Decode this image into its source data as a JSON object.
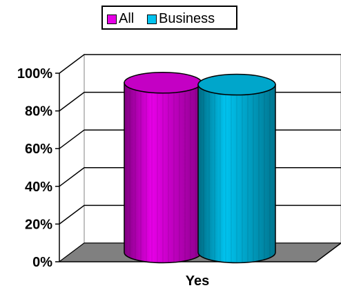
{
  "chart_data": {
    "type": "bar",
    "style": "3d-cylinder",
    "categories": [
      "Yes"
    ],
    "series": [
      {
        "name": "All",
        "values": [
          0.9
        ],
        "color": "#e700e7"
      },
      {
        "name": "Business",
        "values": [
          0.89
        ],
        "color": "#00c3ef"
      }
    ],
    "ylim": [
      0,
      1
    ],
    "yticks": [
      {
        "value": 0,
        "label": "0%"
      },
      {
        "value": 0.2,
        "label": "20%"
      },
      {
        "value": 0.4,
        "label": "40%"
      },
      {
        "value": 0.6,
        "label": "60%"
      },
      {
        "value": 0.8,
        "label": "80%"
      },
      {
        "value": 1.0,
        "label": "100%"
      }
    ],
    "grid": true,
    "legend_position": "top",
    "floor_color": "#808080"
  }
}
